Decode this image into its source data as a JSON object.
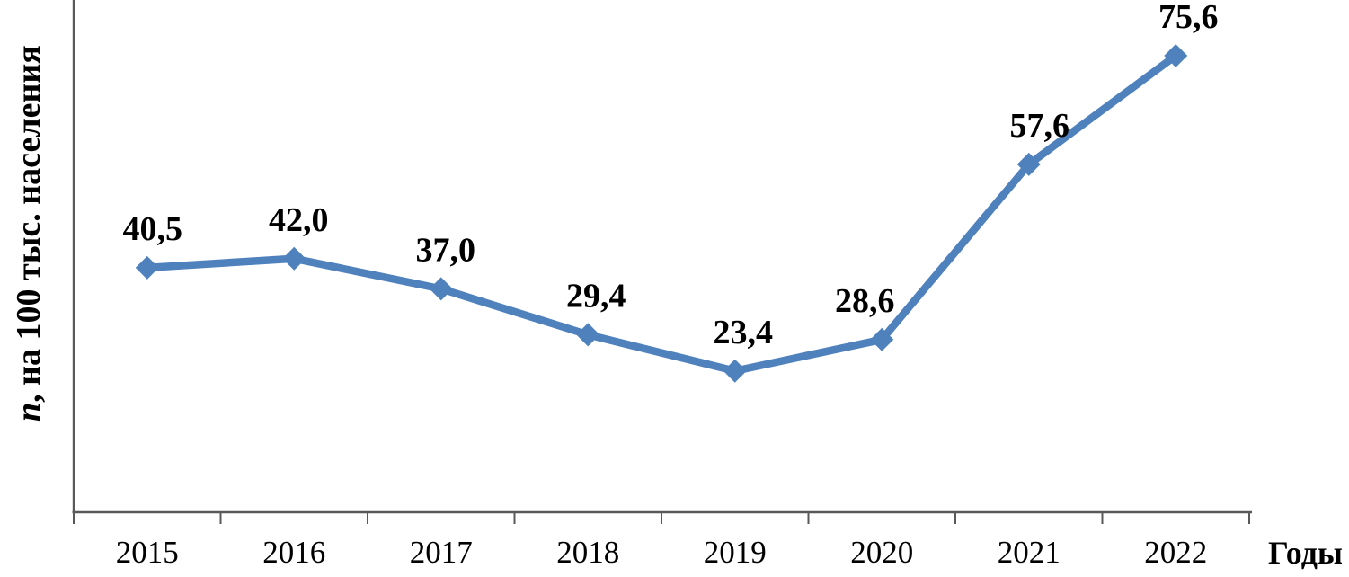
{
  "chart_data": {
    "type": "line",
    "title": "",
    "categories": [
      "2015",
      "2016",
      "2017",
      "2018",
      "2019",
      "2020",
      "2021",
      "2022"
    ],
    "series": [
      {
        "name": "n",
        "values": [
          40.5,
          42.0,
          37.0,
          29.4,
          23.4,
          28.6,
          57.6,
          75.6
        ]
      }
    ],
    "point_labels": [
      "40,5",
      "42,0",
      "37,0",
      "29,4",
      "23,4",
      "28,6",
      "57,6",
      "75,6"
    ],
    "xlabel": "Годы",
    "ylabel": "n, на 100 тыс. населения",
    "ylabel_parts": {
      "var": "n",
      "rest": ", на 100 тыс. населения"
    },
    "ylim": [
      0,
      85
    ],
    "grid": false,
    "legend": "none",
    "marker": "diamond",
    "decimal_separator": ",",
    "colors": {
      "line": "#4F81BD",
      "data_labels": "#000000",
      "axis": "#595959"
    },
    "label_dx": [
      6,
      5,
      5,
      9,
      9,
      -19,
      12,
      14
    ]
  }
}
